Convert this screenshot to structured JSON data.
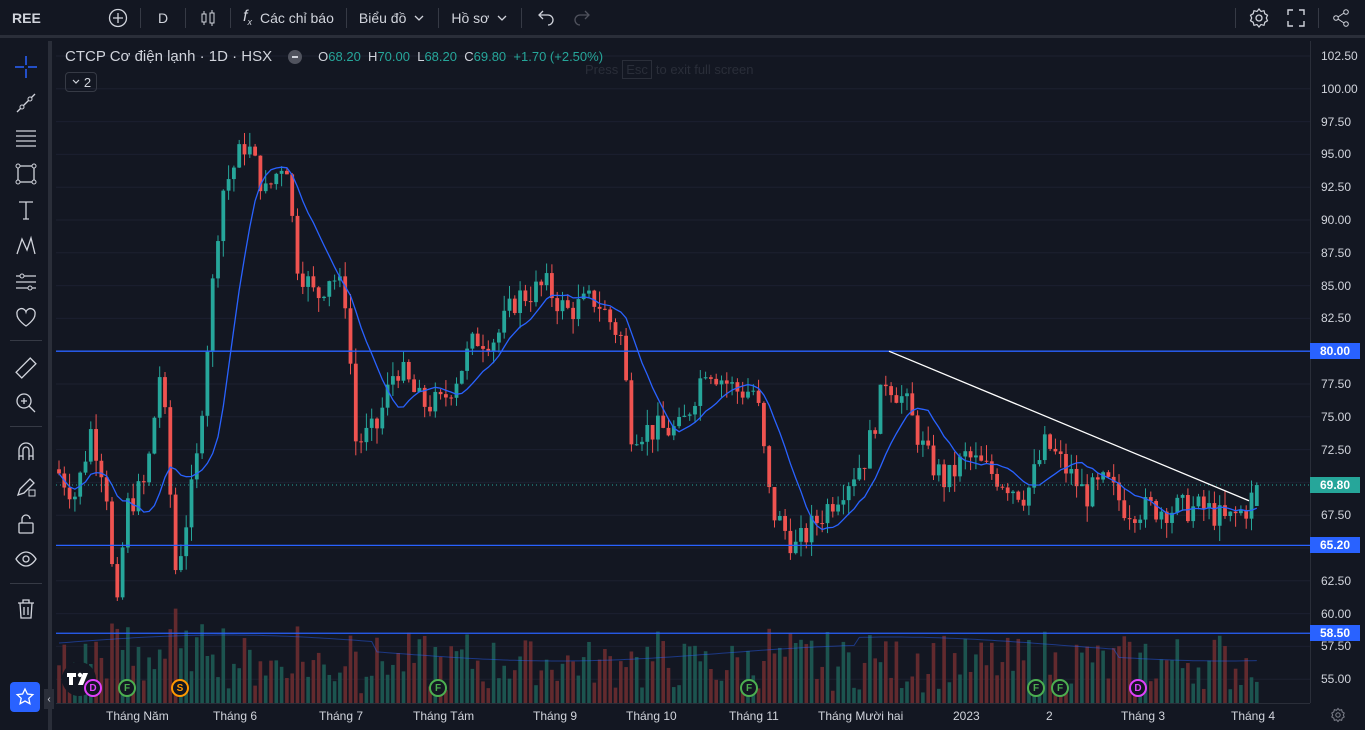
{
  "topbar": {
    "symbol": "REE",
    "interval": "D",
    "indicators_label": "Các chỉ báo",
    "layout_label": "Biểu đồ",
    "profile_label": "Hồ sơ"
  },
  "legend": {
    "title": "CTCP Cơ điện lạnh · 1D · HSX",
    "o_label": "O",
    "o_value": "68.20",
    "h_label": "H",
    "h_value": "70.00",
    "l_label": "L",
    "l_value": "68.20",
    "c_label": "C",
    "c_value": "69.80",
    "change": "+1.70 (+2.50%)",
    "collapsed_count": "2"
  },
  "fullscreen_hint": {
    "prefix": "Press",
    "key": "Esc",
    "suffix": "to exit full screen"
  },
  "y_axis": {
    "ticks": [
      "102.50",
      "100.00",
      "97.50",
      "95.00",
      "92.50",
      "90.00",
      "87.50",
      "85.00",
      "82.50",
      "80.00",
      "77.50",
      "75.00",
      "72.50",
      "69.80",
      "67.50",
      "65.20",
      "62.50",
      "60.00",
      "58.50",
      "57.50",
      "55.00"
    ],
    "labels": [
      "102.50",
      "100.00",
      "97.50",
      "95.00",
      "92.50",
      "90.00",
      "87.50",
      "85.00",
      "82.50",
      "77.50",
      "75.00",
      "72.50",
      "67.50",
      "62.50",
      "60.00",
      "57.50",
      "55.00"
    ]
  },
  "price_tags": {
    "last": "69.80",
    "line_80": "80.00",
    "line_652": "65.20",
    "line_585": "58.50"
  },
  "x_axis": {
    "labels": [
      "Tháng Năm",
      "Tháng 6",
      "Tháng 7",
      "Tháng Tám",
      "Tháng 9",
      "Tháng 10",
      "Tháng 11",
      "Tháng Mười hai",
      "2023",
      "2",
      "Tháng 3",
      "Tháng 4"
    ]
  },
  "events": [
    "D",
    "F",
    "S",
    "F",
    "F",
    "F",
    "F",
    "D"
  ],
  "colors": {
    "up": "#26a69a",
    "down": "#ef5350",
    "ma": "#2962ff",
    "hline": "#2962ff",
    "trend": "#ffffff",
    "bg": "#131722"
  },
  "chart_data": {
    "type": "candlestick",
    "series_ma": "moving-average",
    "ylim": [
      53.5,
      103.7
    ],
    "horizontal_lines": [
      80.0,
      65.2,
      58.5
    ],
    "last_close": 69.8
  }
}
